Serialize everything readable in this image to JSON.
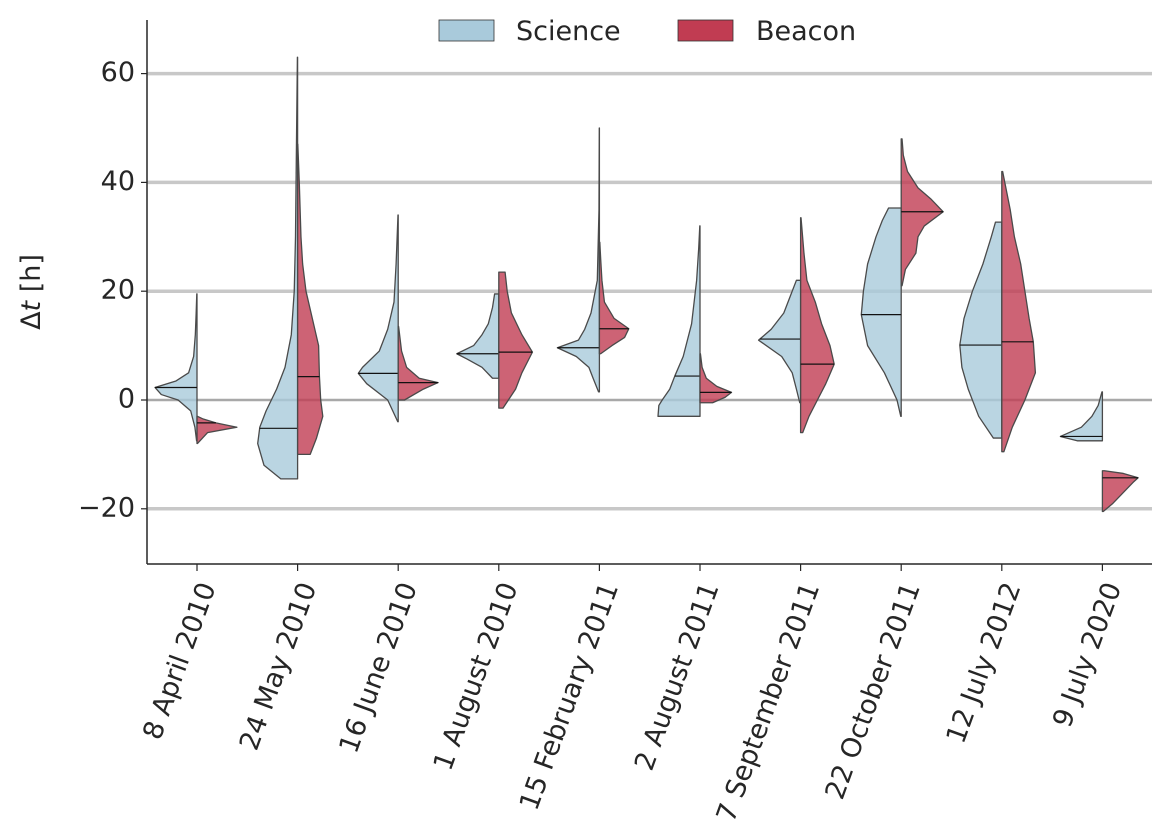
{
  "chart_data": {
    "type": "violin",
    "split": true,
    "title": "",
    "xlabel": "",
    "ylabel_italic": "t",
    "ylabel_prefix": "Δ",
    "ylabel_suffix": " [h]",
    "ylim": [
      -30,
      70
    ],
    "yticks": [
      -20,
      0,
      20,
      40,
      60
    ],
    "ytick_labels": [
      "−20",
      "0",
      "20",
      "40",
      "60"
    ],
    "grid": "horizontal",
    "legend_position": "top-center",
    "categories": [
      "8 April 2010",
      "24 May 2010",
      "16 June 2010",
      "1 August 2010",
      "15 February 2011",
      "2 August 2011",
      "7 September 2011",
      "22 October 2011",
      "12 July 2012",
      "9 July 2020"
    ],
    "series": [
      {
        "name": "Science",
        "color": "#a9cadb",
        "side": "left",
        "medians": [
          2.3,
          -5.2,
          4.9,
          8.5,
          9.6,
          4.4,
          11.2,
          15.7,
          10.1,
          -6.7
        ],
        "min": [
          -7.5,
          -14.5,
          -4.0,
          4.0,
          1.5,
          -3.0,
          -0.5,
          -3.0,
          -7.0,
          -7.5
        ],
        "max": [
          19.5,
          63.0,
          34.0,
          19.5,
          50.0,
          32.0,
          22.0,
          35.3,
          32.7,
          1.5
        ],
        "profiles": [
          [
            [
              -7.5,
              0.01
            ],
            [
              -5,
              0.05
            ],
            [
              -2,
              0.15
            ],
            [
              0,
              0.45
            ],
            [
              1,
              0.85
            ],
            [
              2.3,
              1.0
            ],
            [
              3.5,
              0.5
            ],
            [
              5,
              0.2
            ],
            [
              8,
              0.08
            ],
            [
              12,
              0.04
            ],
            [
              16,
              0.02
            ],
            [
              19.5,
              0.005
            ]
          ],
          [
            [
              -14.5,
              0.4
            ],
            [
              -12,
              0.8
            ],
            [
              -8,
              0.95
            ],
            [
              -5,
              0.9
            ],
            [
              -2,
              0.75
            ],
            [
              2,
              0.5
            ],
            [
              6,
              0.3
            ],
            [
              12,
              0.15
            ],
            [
              20,
              0.08
            ],
            [
              30,
              0.05
            ],
            [
              45,
              0.03
            ],
            [
              63,
              0.005
            ]
          ],
          [
            [
              -4,
              0.01
            ],
            [
              0,
              0.25
            ],
            [
              3,
              0.75
            ],
            [
              4.9,
              0.95
            ],
            [
              6,
              0.85
            ],
            [
              9,
              0.45
            ],
            [
              13,
              0.25
            ],
            [
              18,
              0.1
            ],
            [
              25,
              0.05
            ],
            [
              34,
              0.005
            ]
          ],
          [
            [
              4,
              0.15
            ],
            [
              6,
              0.4
            ],
            [
              7.5,
              0.75
            ],
            [
              8.5,
              1.0
            ],
            [
              10,
              0.6
            ],
            [
              12,
              0.4
            ],
            [
              14,
              0.25
            ],
            [
              17,
              0.15
            ],
            [
              19.5,
              0.1
            ]
          ],
          [
            [
              1.5,
              0.02
            ],
            [
              4,
              0.15
            ],
            [
              6,
              0.25
            ],
            [
              8,
              0.55
            ],
            [
              9.6,
              1.0
            ],
            [
              11,
              0.5
            ],
            [
              13,
              0.35
            ],
            [
              16,
              0.2
            ],
            [
              18,
              0.15
            ],
            [
              22,
              0.05
            ],
            [
              35,
              0.01
            ],
            [
              50,
              0.003
            ]
          ],
          [
            [
              -3,
              1.0
            ],
            [
              -1,
              0.98
            ],
            [
              0,
              0.9
            ],
            [
              2,
              0.72
            ],
            [
              4.4,
              0.6
            ],
            [
              8,
              0.4
            ],
            [
              14,
              0.2
            ],
            [
              22,
              0.08
            ],
            [
              28,
              0.03
            ],
            [
              32,
              0.005
            ]
          ],
          [
            [
              -0.5,
              0.02
            ],
            [
              2,
              0.1
            ],
            [
              5,
              0.2
            ],
            [
              8,
              0.45
            ],
            [
              11,
              1.0
            ],
            [
              13,
              0.7
            ],
            [
              16,
              0.4
            ],
            [
              19,
              0.25
            ],
            [
              22,
              0.1
            ]
          ],
          [
            [
              -3,
              0.01
            ],
            [
              0,
              0.1
            ],
            [
              5,
              0.4
            ],
            [
              10,
              0.8
            ],
            [
              15.7,
              0.95
            ],
            [
              20,
              0.9
            ],
            [
              25,
              0.8
            ],
            [
              30,
              0.6
            ],
            [
              33,
              0.45
            ],
            [
              35.3,
              0.3
            ]
          ],
          [
            [
              -7,
              0.2
            ],
            [
              -3,
              0.55
            ],
            [
              2,
              0.8
            ],
            [
              6,
              0.95
            ],
            [
              10.1,
              1.0
            ],
            [
              15,
              0.9
            ],
            [
              20,
              0.7
            ],
            [
              25,
              0.45
            ],
            [
              30,
              0.25
            ],
            [
              32.7,
              0.15
            ]
          ],
          [
            [
              -7.5,
              0.6
            ],
            [
              -6.7,
              1.0
            ],
            [
              -5,
              0.5
            ],
            [
              -3,
              0.25
            ],
            [
              -1,
              0.1
            ],
            [
              1.5,
              0.01
            ]
          ]
        ]
      },
      {
        "name": "Beacon",
        "color": "#c13c52",
        "side": "right",
        "medians": [
          -4.2,
          4.3,
          3.2,
          8.8,
          13.1,
          1.4,
          6.6,
          34.6,
          10.7,
          -14.3
        ],
        "min": [
          -8.0,
          -10.0,
          0.0,
          -1.5,
          8.5,
          -0.5,
          -6.0,
          21.0,
          -9.5,
          -20.5
        ],
        "max": [
          -3.0,
          47.0,
          13.5,
          23.5,
          29.0,
          8.5,
          33.5,
          48.0,
          42.0,
          -13.0
        ],
        "profiles": [
          [
            [
              -8,
              0.01
            ],
            [
              -6,
              0.25
            ],
            [
              -5,
              0.95
            ],
            [
              -4.2,
              0.45
            ],
            [
              -3.5,
              0.15
            ],
            [
              -3,
              0.01
            ]
          ],
          [
            [
              -10,
              0.3
            ],
            [
              -7,
              0.45
            ],
            [
              -3,
              0.6
            ],
            [
              0,
              0.55
            ],
            [
              4.3,
              0.52
            ],
            [
              10,
              0.5
            ],
            [
              15,
              0.35
            ],
            [
              20,
              0.2
            ],
            [
              25,
              0.12
            ],
            [
              30,
              0.08
            ],
            [
              40,
              0.04
            ],
            [
              47,
              0.005
            ]
          ],
          [
            [
              0,
              0.15
            ],
            [
              2,
              0.6
            ],
            [
              3.2,
              0.95
            ],
            [
              4,
              0.5
            ],
            [
              6,
              0.2
            ],
            [
              9,
              0.08
            ],
            [
              13.5,
              0.01
            ]
          ],
          [
            [
              -1.5,
              0.1
            ],
            [
              2,
              0.4
            ],
            [
              5,
              0.55
            ],
            [
              8.8,
              0.8
            ],
            [
              12,
              0.55
            ],
            [
              16,
              0.3
            ],
            [
              20,
              0.2
            ],
            [
              23.5,
              0.15
            ]
          ],
          [
            [
              8.5,
              0.03
            ],
            [
              10,
              0.3
            ],
            [
              11.5,
              0.6
            ],
            [
              13.1,
              0.7
            ],
            [
              15,
              0.35
            ],
            [
              18,
              0.12
            ],
            [
              22,
              0.06
            ],
            [
              26,
              0.03
            ],
            [
              29,
              0.01
            ]
          ],
          [
            [
              -0.5,
              0.3
            ],
            [
              0.5,
              0.6
            ],
            [
              1.4,
              0.75
            ],
            [
              2.5,
              0.4
            ],
            [
              4,
              0.15
            ],
            [
              6,
              0.05
            ],
            [
              8.5,
              0.01
            ]
          ],
          [
            [
              -6,
              0.05
            ],
            [
              -3,
              0.2
            ],
            [
              0,
              0.4
            ],
            [
              3,
              0.6
            ],
            [
              6.6,
              0.8
            ],
            [
              10,
              0.7
            ],
            [
              14,
              0.5
            ],
            [
              18,
              0.35
            ],
            [
              22,
              0.15
            ],
            [
              27,
              0.08
            ],
            [
              33.5,
              0.01
            ]
          ],
          [
            [
              21,
              0.02
            ],
            [
              24,
              0.1
            ],
            [
              27,
              0.35
            ],
            [
              30,
              0.4
            ],
            [
              32,
              0.55
            ],
            [
              34.6,
              1.0
            ],
            [
              37,
              0.7
            ],
            [
              39,
              0.4
            ],
            [
              42,
              0.15
            ],
            [
              45,
              0.05
            ],
            [
              48,
              0.02
            ]
          ],
          [
            [
              -9.5,
              0.05
            ],
            [
              -5,
              0.25
            ],
            [
              0,
              0.55
            ],
            [
              5,
              0.8
            ],
            [
              10.7,
              0.75
            ],
            [
              15,
              0.65
            ],
            [
              20,
              0.55
            ],
            [
              25,
              0.45
            ],
            [
              30,
              0.3
            ],
            [
              35,
              0.2
            ],
            [
              42,
              0.02
            ]
          ],
          [
            [
              -20.5,
              0.02
            ],
            [
              -19,
              0.25
            ],
            [
              -17,
              0.5
            ],
            [
              -15,
              0.75
            ],
            [
              -14.3,
              0.85
            ],
            [
              -13.5,
              0.5
            ],
            [
              -13,
              0.05
            ]
          ]
        ]
      }
    ]
  }
}
